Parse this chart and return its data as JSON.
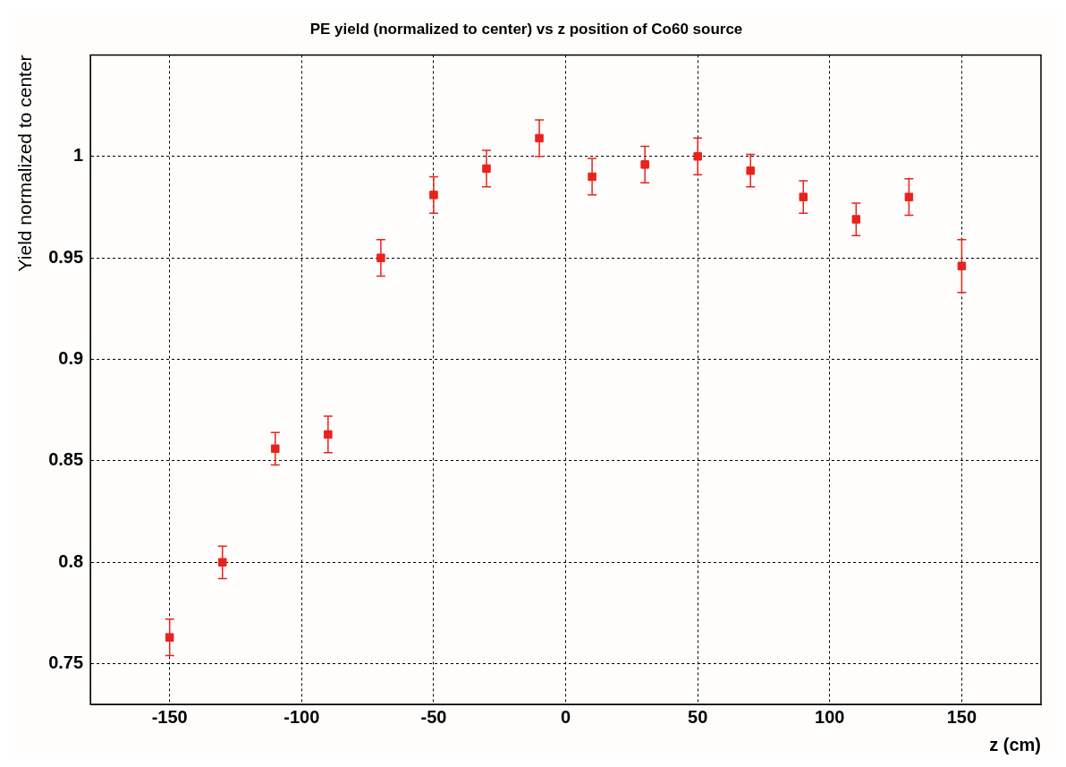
{
  "chart_data": {
    "type": "scatter",
    "title": "PE yield (normalized to center) vs z position of Co60 source",
    "xlabel": "z (cm)",
    "ylabel": "Yield normalized to center",
    "x": [
      -150,
      -130,
      -110,
      -90,
      -70,
      -50,
      -30,
      -10,
      10,
      30,
      50,
      70,
      90,
      110,
      130,
      150
    ],
    "series": [
      {
        "color": "#e8231c",
        "values": [
          0.763,
          0.8,
          0.856,
          0.863,
          0.95,
          0.981,
          0.994,
          1.009,
          0.99,
          0.996,
          1.0,
          0.993,
          0.98,
          0.969,
          0.98,
          0.946
        ],
        "errors": [
          0.009,
          0.008,
          0.008,
          0.009,
          0.009,
          0.009,
          0.009,
          0.009,
          0.009,
          0.009,
          0.009,
          0.008,
          0.008,
          0.008,
          0.009,
          0.013
        ]
      }
    ],
    "xlim": [
      -180,
      180
    ],
    "xticks": [
      -150,
      -100,
      -50,
      0,
      50,
      100,
      150
    ],
    "ylim": [
      0.73,
      1.05
    ],
    "yticks": [
      0.75,
      0.8,
      0.85,
      0.9,
      0.95,
      1
    ],
    "grid": true,
    "marker": "square",
    "legend": false
  }
}
